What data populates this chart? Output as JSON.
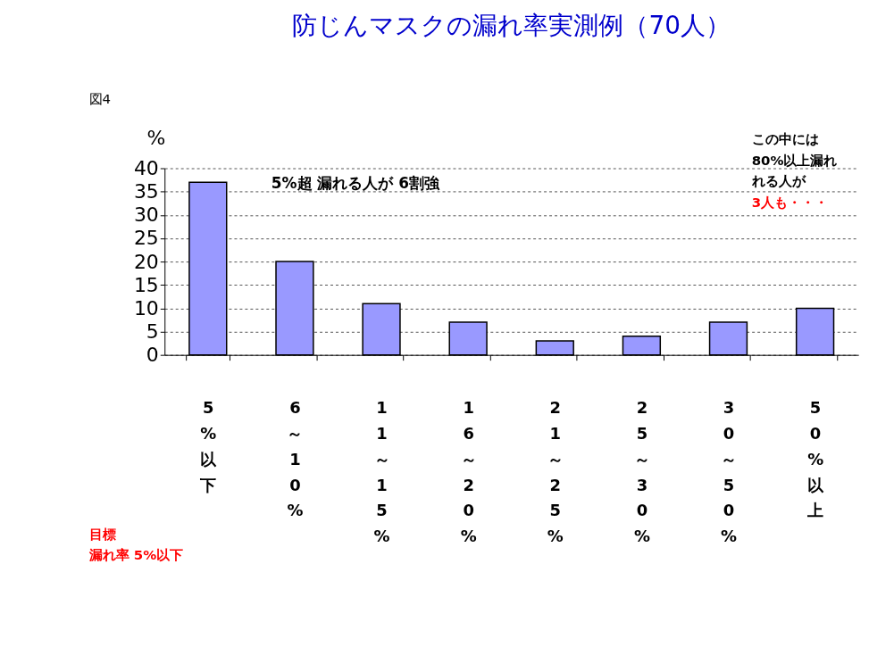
{
  "chart_data": {
    "type": "bar",
    "title": "防じんマスクの漏れ率実測例（70人）",
    "ylabel": "%",
    "categories": [
      "5%以下",
      "6～10%",
      "11～15%",
      "16～20%",
      "21～25%",
      "25～30%",
      "30～50%",
      "50%以上"
    ],
    "values": [
      37,
      20,
      11,
      7,
      3,
      4,
      7,
      10
    ],
    "color": "#9999ff",
    "ylim": [
      0,
      40
    ],
    "yticks": [
      0,
      5,
      10,
      15,
      20,
      25,
      30,
      35,
      40
    ],
    "grid": "y",
    "annotations": [
      "図4",
      "5%超  漏れる人が  6割強",
      "この中には",
      "80%以上漏れ",
      "れる人が",
      "3人も・・・",
      "目標",
      "漏れ率  5%以下"
    ]
  }
}
